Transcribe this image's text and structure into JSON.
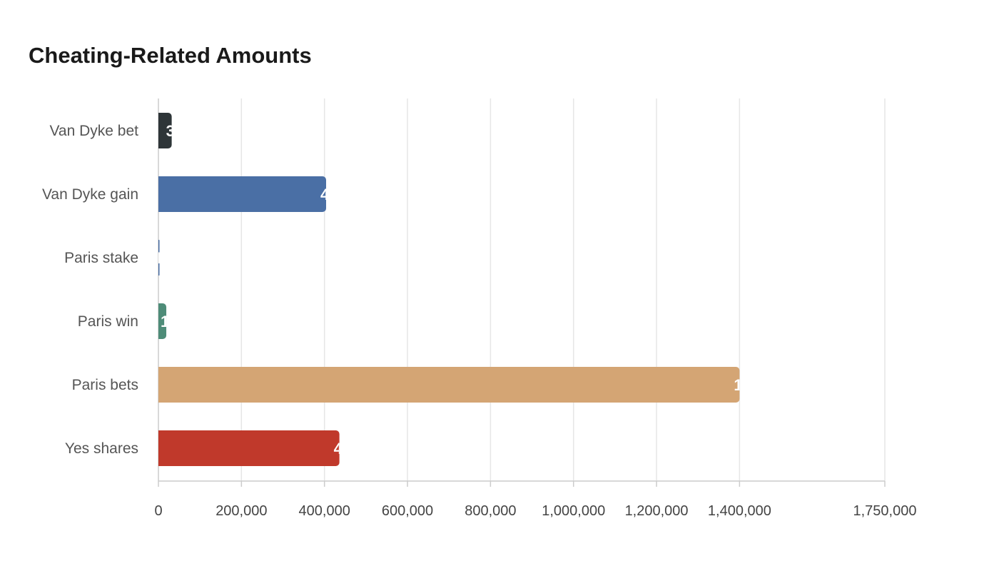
{
  "chart_data": {
    "type": "bar",
    "orientation": "horizontal",
    "title": "Cheating-Related Amounts",
    "xlabel": "",
    "ylabel": "",
    "categories": [
      "Van Dyke bet",
      "Van Dyke gain",
      "Paris stake",
      "Paris win",
      "Paris bets",
      "Yes shares"
    ],
    "values": [
      32000,
      404000,
      100,
      19000,
      1400000,
      436000
    ],
    "colors": [
      "#2e3538",
      "#4a6fa5",
      "#4a6fa5",
      "#4e8c78",
      "#d4a574",
      "#c0392b"
    ],
    "xlim": [
      0,
      1750000
    ],
    "xticks": [
      0,
      200000,
      400000,
      600000,
      800000,
      1000000,
      1200000,
      1400000,
      1750000
    ],
    "xtick_labels": [
      "0",
      "200,000",
      "400,000",
      "600,000",
      "800,000",
      "1,000,000",
      "1,200,000",
      "1,400,000",
      "1,750,000"
    ],
    "grid": true,
    "legend": "none"
  }
}
